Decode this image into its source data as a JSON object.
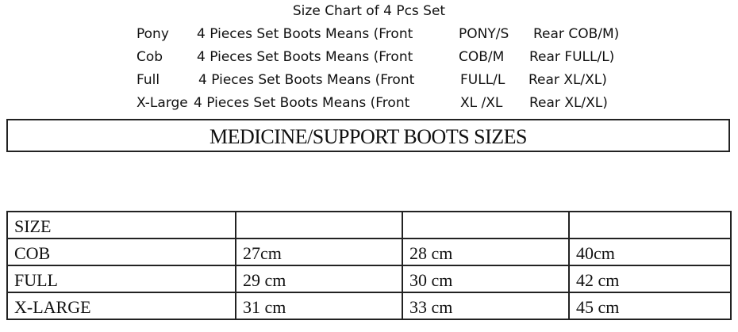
{
  "size_chart": {
    "title": "Size Chart of 4 Pcs Set",
    "rows": [
      {
        "size": "Pony",
        "desc": "4 Pieces Set Boots Means (Front",
        "front": "PONY/S",
        "rear": "Rear COB/M)"
      },
      {
        "size": "Cob",
        "desc": "4 Pieces Set Boots Means (Front",
        "front": "COB/M",
        "rear": "Rear FULL/L)"
      },
      {
        "size": "Full",
        "desc": "4 Pieces Set Boots Means (Front",
        "front": "FULL/L",
        "rear": "Rear XL/XL)"
      },
      {
        "size": "X-Large",
        "desc": "4 Pieces Set Boots Means (Front",
        "front": "XL /XL",
        "rear": "Rear XL/XL)"
      }
    ]
  },
  "banner": {
    "title": "MEDICINE/SUPPORT BOOTS SIZES"
  },
  "table": {
    "header": [
      "SIZE",
      "",
      "",
      ""
    ],
    "rows": [
      [
        "COB",
        "27cm",
        "28 cm",
        "40cm"
      ],
      [
        "FULL",
        "29 cm",
        "30 cm",
        "42 cm"
      ],
      [
        "X-LARGE",
        "31 cm",
        "33 cm",
        "45 cm"
      ]
    ]
  }
}
